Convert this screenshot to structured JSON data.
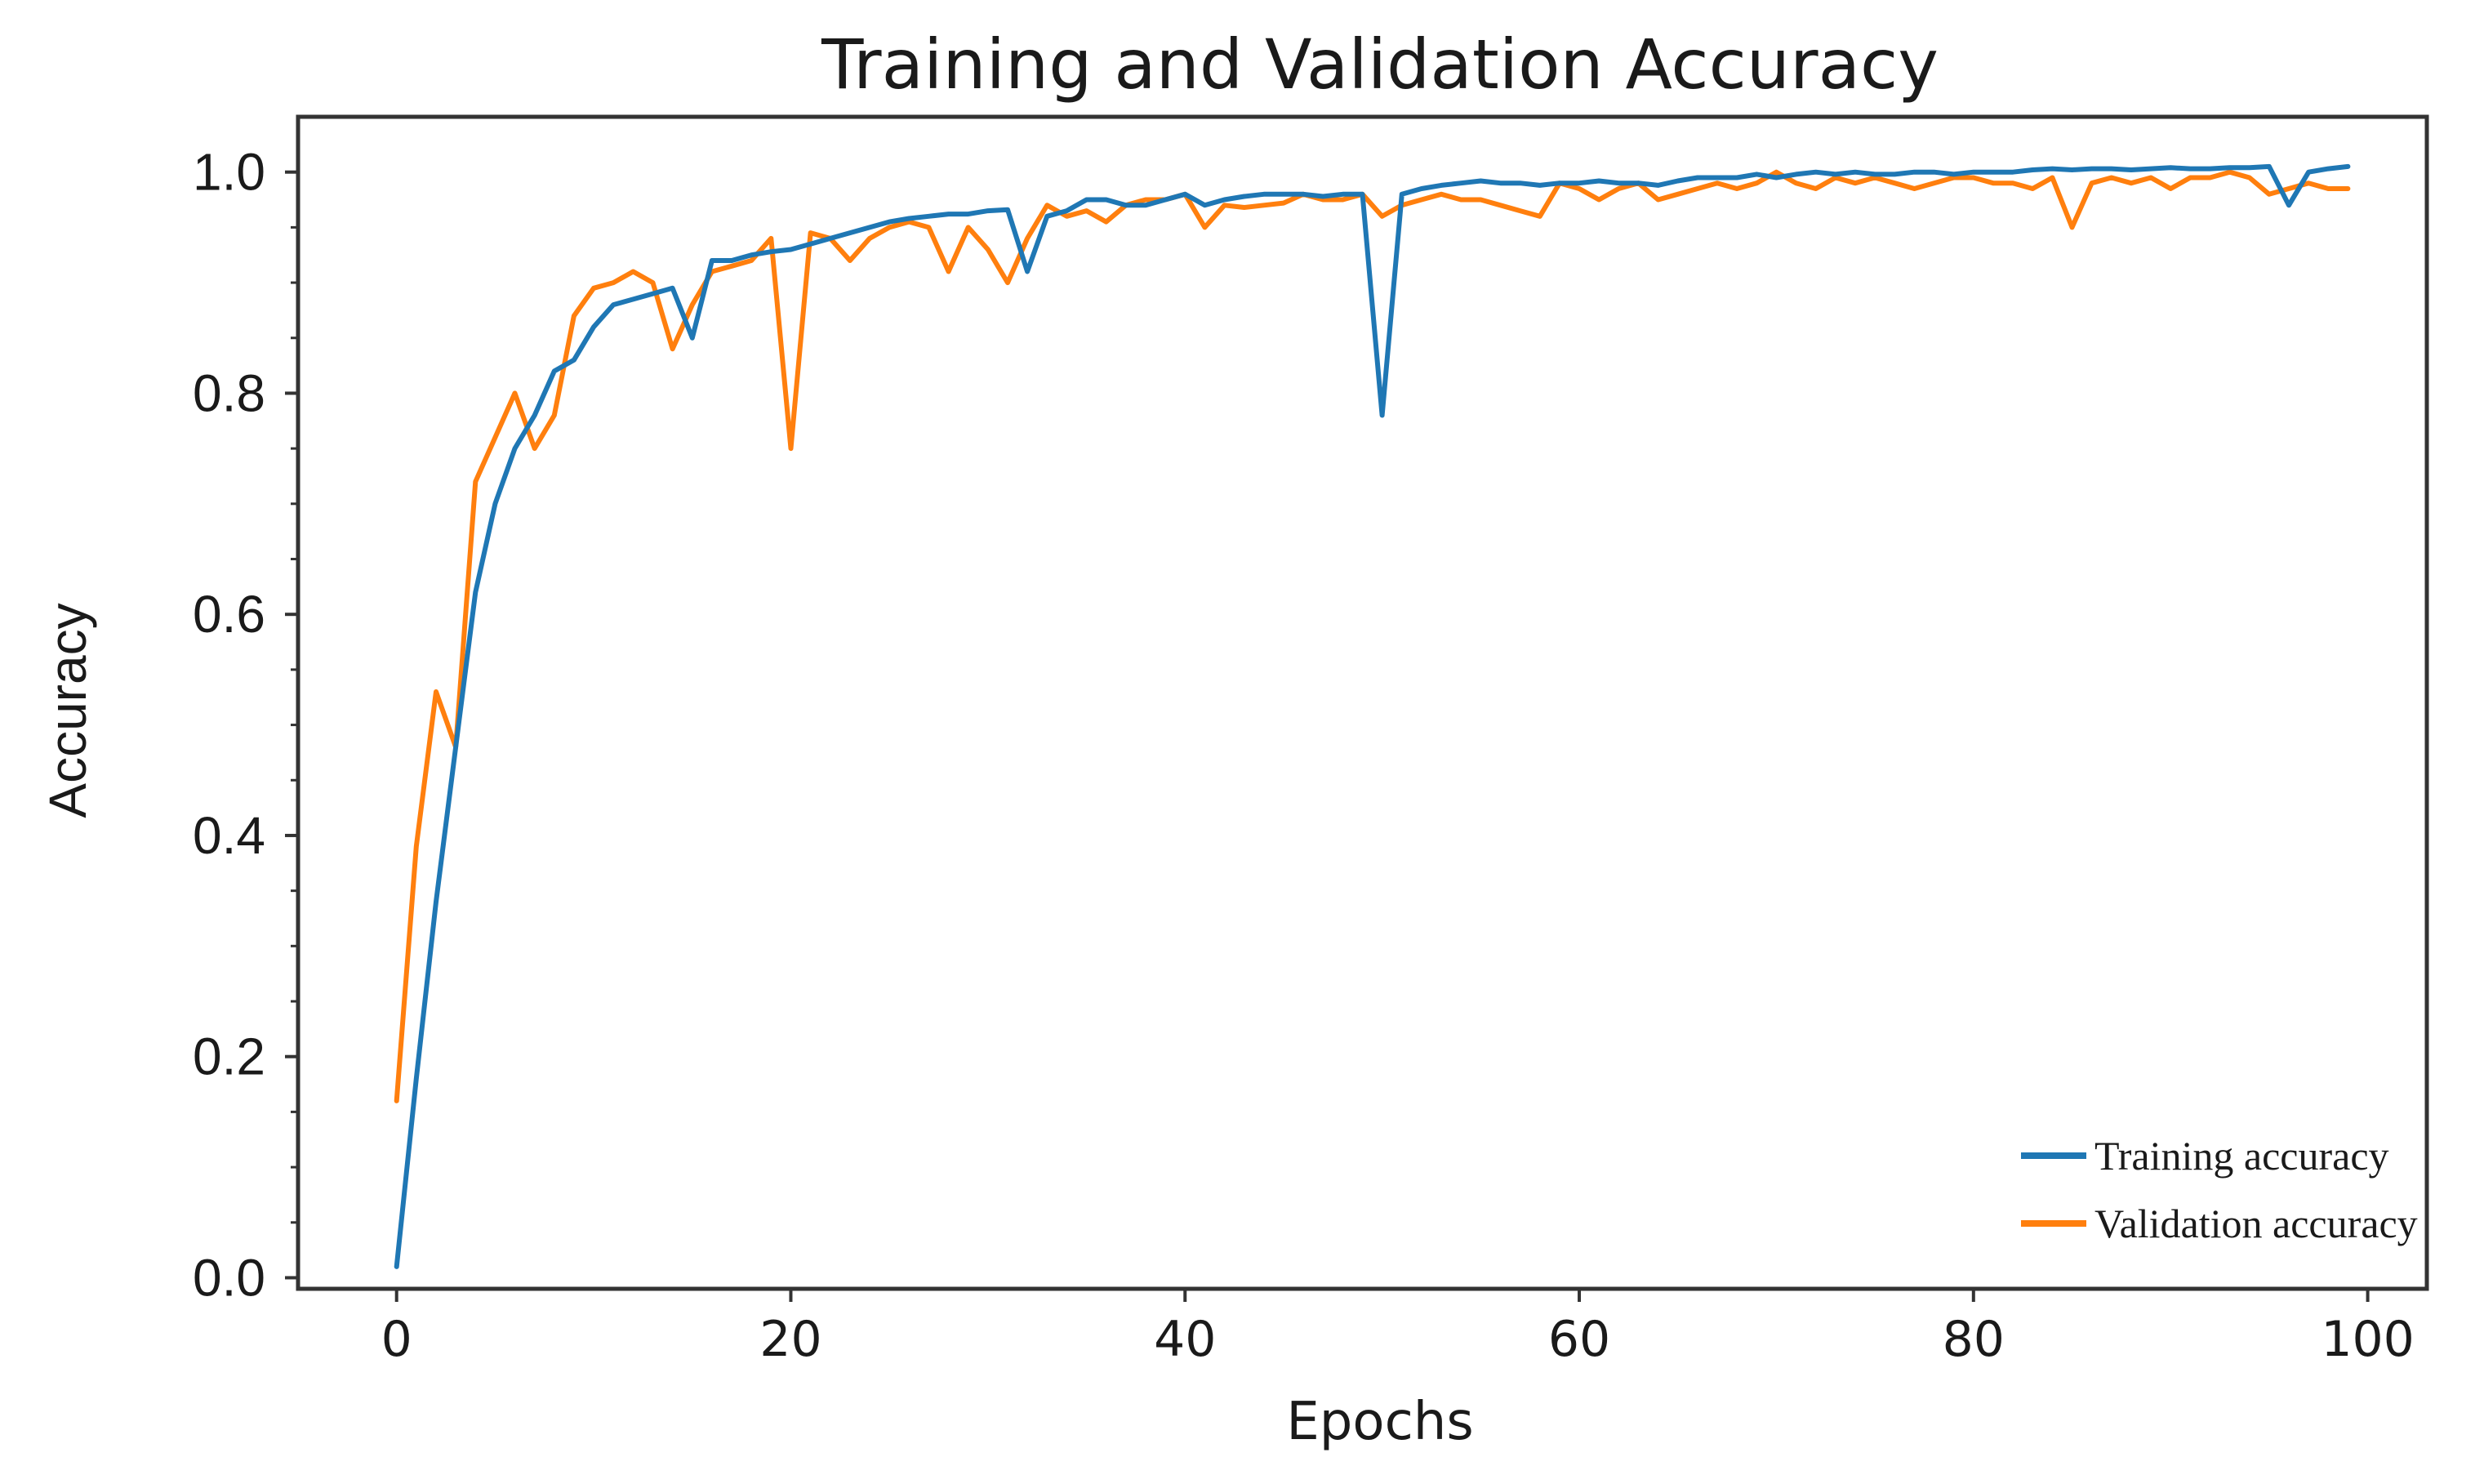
{
  "chart_data": {
    "type": "line",
    "title": "Training and Validation Accuracy",
    "xlabel": "Epochs",
    "ylabel": "Accuracy",
    "xlim": [
      -5,
      103
    ],
    "ylim": [
      -0.01,
      1.05
    ],
    "xticks": [
      0,
      20,
      40,
      60,
      80,
      100
    ],
    "xtick_labels": [
      "0",
      "20",
      "40",
      "60",
      "80",
      "100"
    ],
    "yticks": [
      0.0,
      0.2,
      0.4,
      0.6,
      0.8,
      1.0
    ],
    "ytick_labels": [
      "0.0",
      "0.2",
      "0.4",
      "0.6",
      "0.8",
      "1.0"
    ],
    "grid": false,
    "legend_position": "bottom-right",
    "x": [
      0,
      1,
      2,
      3,
      4,
      5,
      6,
      7,
      8,
      9,
      10,
      11,
      12,
      13,
      14,
      15,
      16,
      17,
      18,
      19,
      20,
      21,
      22,
      23,
      24,
      25,
      26,
      27,
      28,
      29,
      30,
      31,
      32,
      33,
      34,
      35,
      36,
      37,
      38,
      39,
      40,
      41,
      42,
      43,
      44,
      45,
      46,
      47,
      48,
      49,
      50,
      51,
      52,
      53,
      54,
      55,
      56,
      57,
      58,
      59,
      60,
      61,
      62,
      63,
      64,
      65,
      66,
      67,
      68,
      69,
      70,
      71,
      72,
      73,
      74,
      75,
      76,
      77,
      78,
      79,
      80,
      81,
      82,
      83,
      84,
      85,
      86,
      87,
      88,
      89,
      90,
      91,
      92,
      93,
      94,
      95,
      96,
      97,
      98,
      99
    ],
    "series": [
      {
        "name": "Training accuracy",
        "color": "#1f77b4",
        "values": [
          0.01,
          0.18,
          0.34,
          0.48,
          0.62,
          0.7,
          0.75,
          0.78,
          0.82,
          0.83,
          0.86,
          0.88,
          0.885,
          0.89,
          0.895,
          0.85,
          0.92,
          0.92,
          0.925,
          0.928,
          0.93,
          0.935,
          0.94,
          0.945,
          0.95,
          0.955,
          0.958,
          0.96,
          0.962,
          0.962,
          0.965,
          0.966,
          0.91,
          0.96,
          0.965,
          0.975,
          0.975,
          0.97,
          0.97,
          0.975,
          0.98,
          0.97,
          0.975,
          0.978,
          0.98,
          0.98,
          0.98,
          0.978,
          0.98,
          0.98,
          0.78,
          0.98,
          0.985,
          0.988,
          0.99,
          0.992,
          0.99,
          0.99,
          0.988,
          0.99,
          0.99,
          0.992,
          0.99,
          0.99,
          0.988,
          0.992,
          0.995,
          0.995,
          0.995,
          0.998,
          0.995,
          0.998,
          1.0,
          0.998,
          1.0,
          0.998,
          0.998,
          1.0,
          1.0,
          0.998,
          1.0,
          1.0,
          1.0,
          1.002,
          1.003,
          1.002,
          1.003,
          1.003,
          1.002,
          1.003,
          1.004,
          1.003,
          1.003,
          1.004,
          1.004,
          1.005,
          0.97,
          1.0,
          1.003,
          1.005
        ]
      },
      {
        "name": "Validation accuracy",
        "color": "#ff7f0e",
        "values": [
          0.16,
          0.39,
          0.53,
          0.48,
          0.72,
          0.76,
          0.8,
          0.75,
          0.78,
          0.87,
          0.895,
          0.9,
          0.91,
          0.9,
          0.84,
          0.88,
          0.91,
          0.915,
          0.92,
          0.94,
          0.75,
          0.945,
          0.94,
          0.92,
          0.94,
          0.95,
          0.955,
          0.95,
          0.91,
          0.95,
          0.93,
          0.9,
          0.94,
          0.97,
          0.96,
          0.965,
          0.955,
          0.97,
          0.975,
          0.975,
          0.98,
          0.95,
          0.97,
          0.968,
          0.97,
          0.972,
          0.98,
          0.975,
          0.975,
          0.98,
          0.96,
          0.97,
          0.975,
          0.98,
          0.975,
          0.975,
          0.97,
          0.965,
          0.96,
          0.99,
          0.985,
          0.975,
          0.985,
          0.99,
          0.975,
          0.98,
          0.985,
          0.99,
          0.985,
          0.99,
          1.0,
          0.99,
          0.985,
          0.995,
          0.99,
          0.995,
          0.99,
          0.985,
          0.99,
          0.995,
          0.995,
          0.99,
          0.99,
          0.985,
          0.995,
          0.95,
          0.99,
          0.995,
          0.99,
          0.995,
          0.985,
          0.995,
          0.995,
          1.0,
          0.995,
          0.98,
          0.985,
          0.99,
          0.985,
          0.985
        ]
      }
    ]
  }
}
